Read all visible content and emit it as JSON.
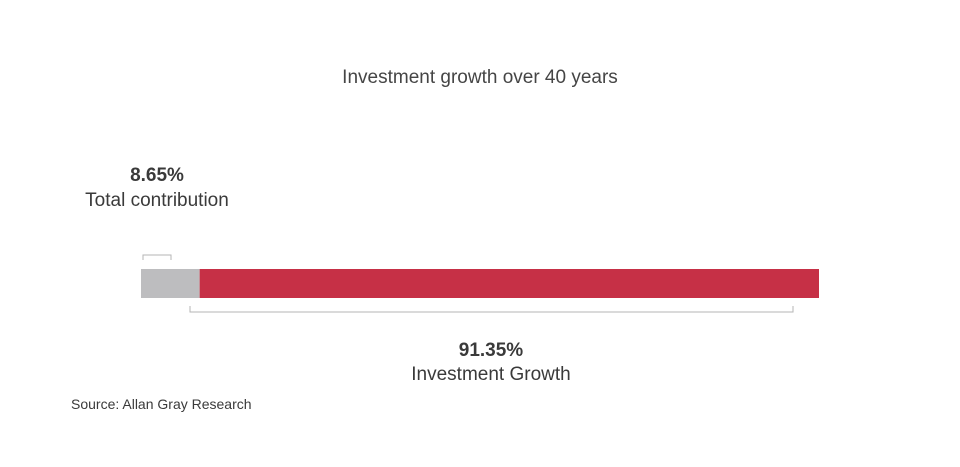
{
  "chart_data": {
    "type": "bar",
    "orientation": "horizontal",
    "stacked": true,
    "title": "Investment growth over 40 years",
    "segments": [
      {
        "label": "Total contribution",
        "value": 8.65,
        "display": "8.65%",
        "color": "#bdbdbf"
      },
      {
        "label": "Investment Growth",
        "value": 91.35,
        "display": "91.35%",
        "color": "#c63046"
      }
    ]
  },
  "source": "Source: Allan Gray Research"
}
